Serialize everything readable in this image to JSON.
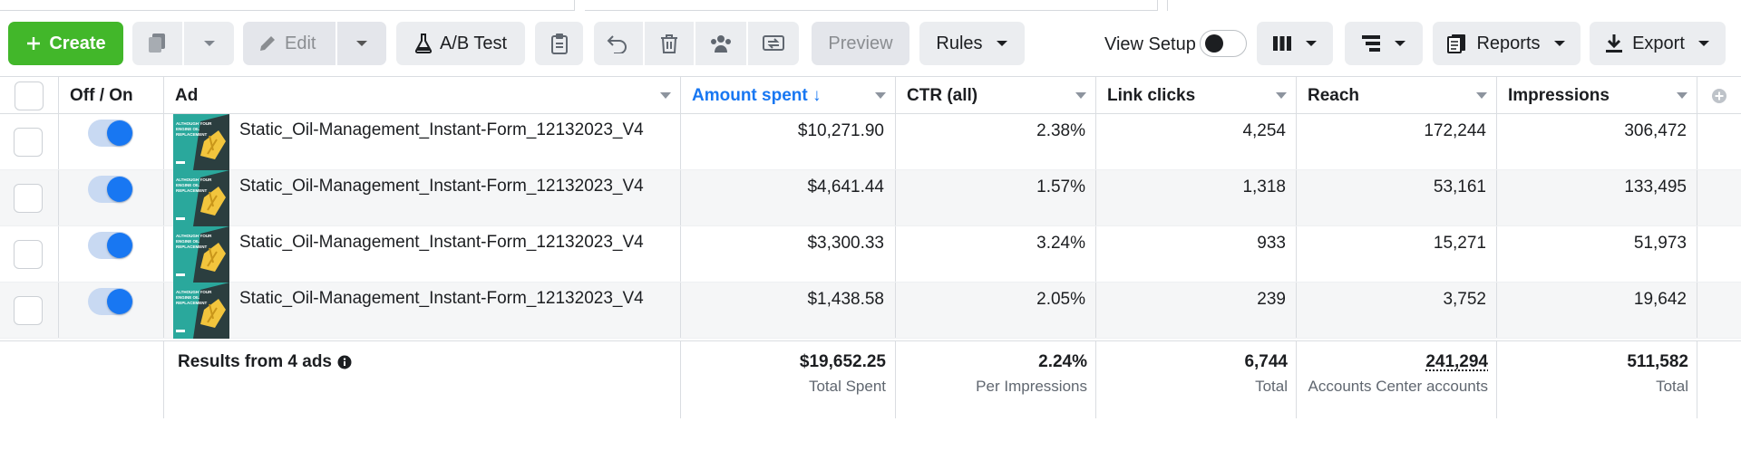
{
  "toolbar": {
    "create_label": "Create",
    "edit_label": "Edit",
    "abtest_label": "A/B Test",
    "preview_label": "Preview",
    "rules_label": "Rules",
    "view_setup_label": "View Setup",
    "view_setup_on": false,
    "reports_label": "Reports",
    "export_label": "Export"
  },
  "columns": {
    "off_on": "Off / On",
    "ad": "Ad",
    "amount_spent": "Amount spent ↓",
    "ctr": "CTR (all)",
    "link_clicks": "Link clicks",
    "reach": "Reach",
    "impressions": "Impressions"
  },
  "rows": [
    {
      "ad": "Static_Oil-Management_Instant-Form_12132023_V4",
      "on": true,
      "amount_spent": "$10,271.90",
      "ctr": "2.38%",
      "link_clicks": "4,254",
      "reach": "172,244",
      "impressions": "306,472"
    },
    {
      "ad": "Static_Oil-Management_Instant-Form_12132023_V4",
      "on": true,
      "amount_spent": "$4,641.44",
      "ctr": "1.57%",
      "link_clicks": "1,318",
      "reach": "53,161",
      "impressions": "133,495"
    },
    {
      "ad": "Static_Oil-Management_Instant-Form_12132023_V4",
      "on": true,
      "amount_spent": "$3,300.33",
      "ctr": "3.24%",
      "link_clicks": "933",
      "reach": "15,271",
      "impressions": "51,973"
    },
    {
      "ad": "Static_Oil-Management_Instant-Form_12132023_V4",
      "on": true,
      "amount_spent": "$1,438.58",
      "ctr": "2.05%",
      "link_clicks": "239",
      "reach": "3,752",
      "impressions": "19,642"
    }
  ],
  "summary": {
    "label": "Results from 4 ads",
    "amount_spent": "$19,652.25",
    "amount_spent_sub": "Total Spent",
    "ctr": "2.24%",
    "ctr_sub": "Per Impressions",
    "link_clicks": "6,744",
    "link_clicks_sub": "Total",
    "reach": "241,294",
    "reach_sub": "Accounts Center accounts",
    "impressions": "511,582",
    "impressions_sub": "Total"
  },
  "thumbnail_text": "ALTHOUGH YOUR ENGINE OIL REPLACEMENT",
  "colors": {
    "primary_blue": "#1877f2",
    "create_green": "#42b72a",
    "thumb_teal": "#2aa89c"
  },
  "icons": [
    "plus-icon",
    "duplicate-icon",
    "chevron-down-icon",
    "pencil-icon",
    "flask-icon",
    "clipboard-icon",
    "undo-icon",
    "trash-icon",
    "people-icon",
    "swap-icon",
    "columns-icon",
    "breakdown-icon",
    "reports-icon",
    "download-icon",
    "add-column-icon",
    "info-icon"
  ]
}
